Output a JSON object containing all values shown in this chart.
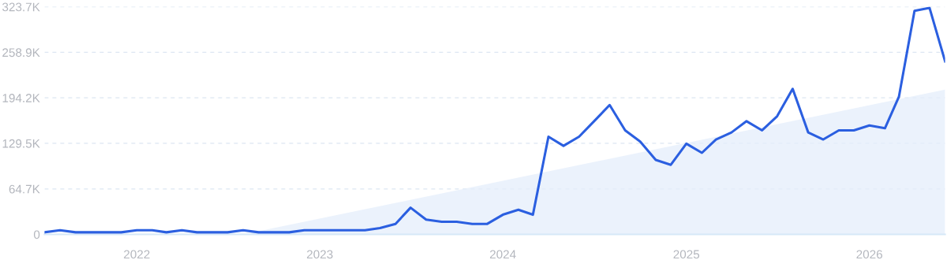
{
  "chart_data": {
    "type": "line",
    "x": [
      "2021-07",
      "2021-08",
      "2021-09",
      "2021-10",
      "2021-11",
      "2021-12",
      "2022-01",
      "2022-02",
      "2022-03",
      "2022-04",
      "2022-05",
      "2022-06",
      "2022-07",
      "2022-08",
      "2022-09",
      "2022-10",
      "2022-11",
      "2022-12",
      "2023-01",
      "2023-02",
      "2023-03",
      "2023-04",
      "2023-05",
      "2023-06",
      "2023-07",
      "2023-08",
      "2023-09",
      "2023-10",
      "2023-11",
      "2023-12",
      "2024-01",
      "2024-02",
      "2024-03",
      "2024-04",
      "2024-05",
      "2024-06",
      "2024-07",
      "2024-08",
      "2024-09",
      "2024-10",
      "2024-11",
      "2024-12",
      "2025-01",
      "2025-02",
      "2025-03",
      "2025-04",
      "2025-05",
      "2025-06",
      "2025-07",
      "2025-08",
      "2025-09",
      "2025-10",
      "2025-11",
      "2025-12",
      "2026-01",
      "2026-02",
      "2026-03",
      "2026-04",
      "2026-05",
      "2026-06"
    ],
    "series": [
      {
        "type": "area",
        "color": "#e4eefb",
        "x": [
          "2022-08",
          "2026-06"
        ],
        "values": [
          0,
          206000
        ]
      },
      {
        "color": "#2b5fe0",
        "values": [
          3000,
          6000,
          3000,
          3000,
          3000,
          3000,
          6000,
          6000,
          3000,
          6000,
          3000,
          3000,
          3000,
          6000,
          3000,
          3000,
          3000,
          6000,
          6000,
          6000,
          6000,
          6000,
          9000,
          15000,
          38000,
          21000,
          18000,
          18000,
          15000,
          15000,
          28000,
          35000,
          28000,
          139000,
          126000,
          139000,
          161000,
          184000,
          148000,
          132000,
          106000,
          99000,
          129000,
          116000,
          135000,
          145000,
          161000,
          148000,
          168000,
          207000,
          145000,
          135000,
          148000,
          148000,
          155000,
          151000,
          196000,
          318000,
          322000,
          246000
        ]
      }
    ],
    "xlim": [
      "2021-07",
      "2026-06"
    ],
    "xticks": [
      "2022",
      "2023",
      "2024",
      "2025",
      "2026"
    ],
    "ylim": [
      0,
      323700
    ],
    "yticks": [
      0,
      {
        "value": 64700,
        "label": "64.7K"
      },
      {
        "value": 129500,
        "label": "129.5K"
      },
      {
        "value": 194200,
        "label": "194.2K"
      },
      {
        "value": 258900,
        "label": "258.9K"
      },
      {
        "value": 323700,
        "label": "323.7K"
      }
    ],
    "grid": "y",
    "line_style": "solid",
    "marker": "none"
  }
}
